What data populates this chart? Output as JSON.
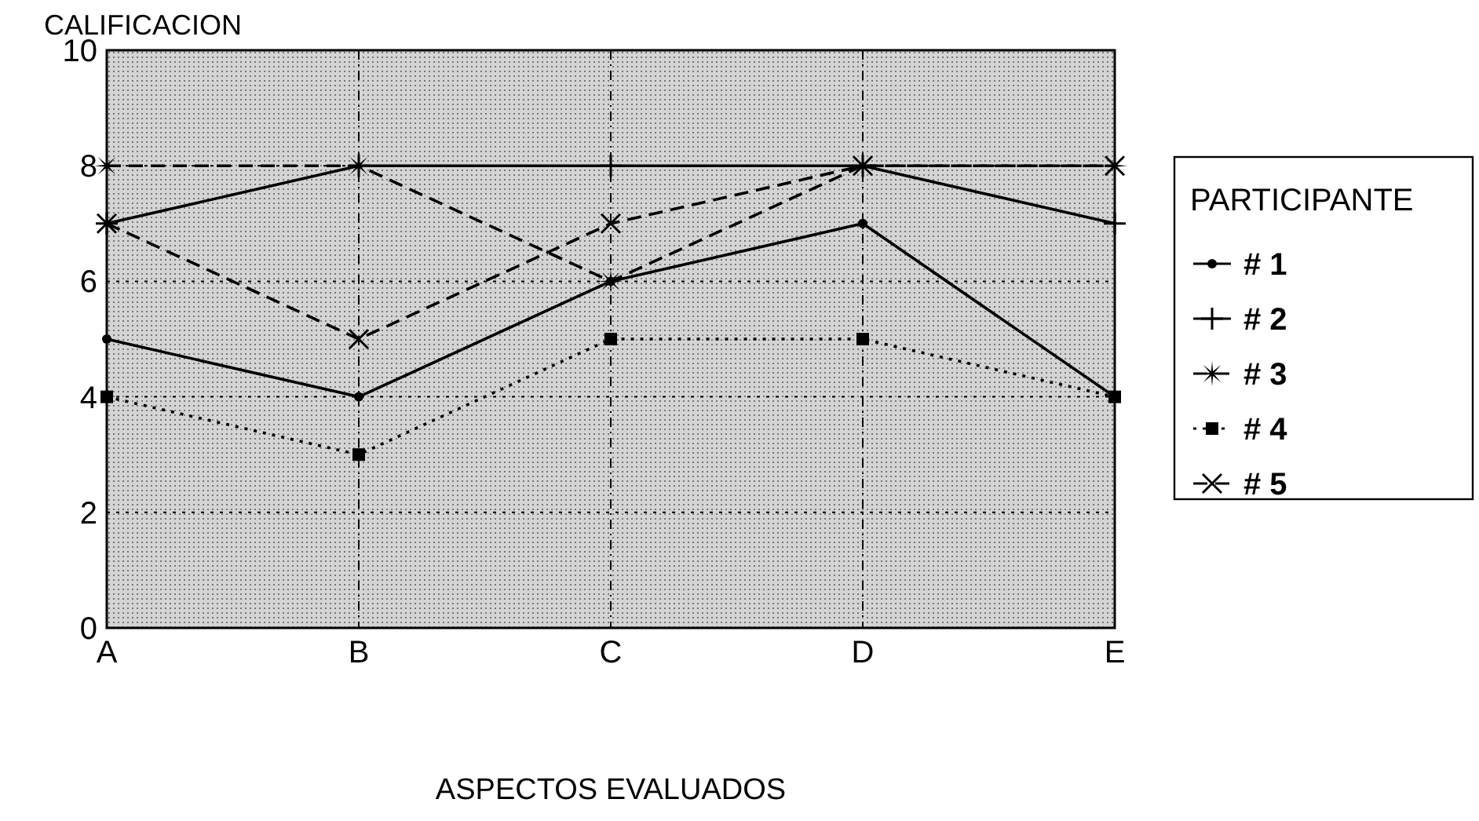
{
  "chart_data": {
    "type": "line",
    "ylabel": "CALIFICACION",
    "xlabel": "ASPECTOS EVALUADOS",
    "legend_title": "PARTICIPANTE",
    "categories": [
      "A",
      "B",
      "C",
      "D",
      "E"
    ],
    "ylim": [
      0,
      10
    ],
    "yticks": [
      0,
      2,
      4,
      6,
      8,
      10
    ],
    "grid": true,
    "legend": "right",
    "series": [
      {
        "name": "# 1",
        "color": "#000000",
        "marker": "circle",
        "line_style": "solid",
        "values": [
          5,
          4,
          6,
          7,
          4
        ]
      },
      {
        "name": "# 2",
        "color": "#000000",
        "marker": "cross",
        "line_style": "solid",
        "values": [
          7,
          8,
          8,
          8,
          7
        ]
      },
      {
        "name": "# 3",
        "color": "#000000",
        "marker": "star",
        "line_style": "dashed",
        "values": [
          8,
          8,
          6,
          8,
          8
        ]
      },
      {
        "name": "# 4",
        "color": "#000000",
        "marker": "square",
        "line_style": "dotted",
        "values": [
          4,
          3,
          5,
          5,
          4
        ]
      },
      {
        "name": "# 5",
        "color": "#000000",
        "marker": "x",
        "line_style": "dashed",
        "values": [
          7,
          5,
          7,
          8,
          8
        ]
      }
    ]
  }
}
